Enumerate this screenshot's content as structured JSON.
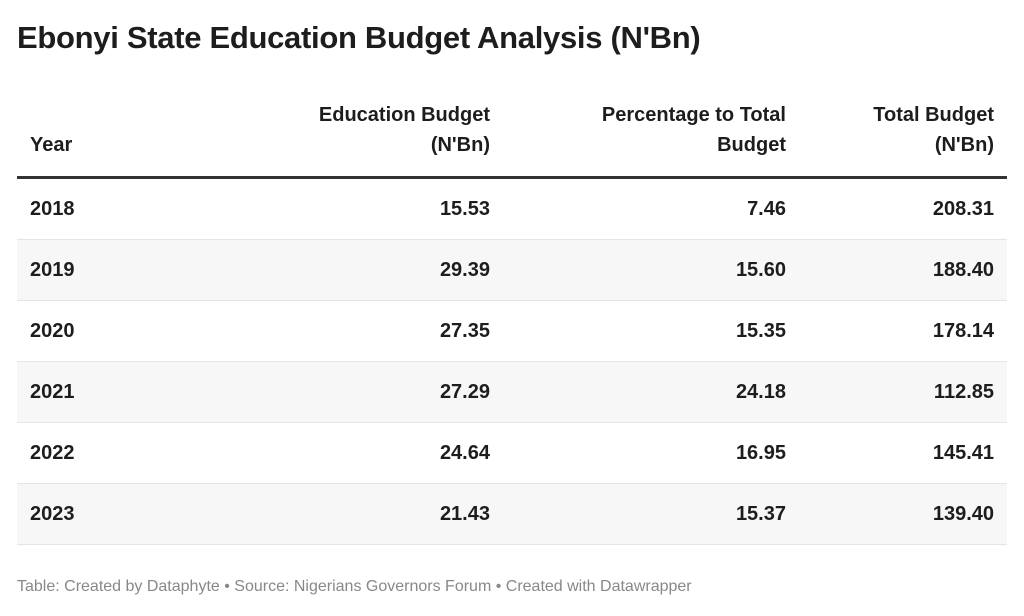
{
  "title": "Ebonyi State Education Budget Analysis (N'Bn)",
  "table": {
    "headers": [
      "Year",
      "Education Budget (N'Bn)",
      "Percentage to Total Budget",
      "Total Budget (N'Bn)"
    ],
    "header_lines": [
      [
        "Year"
      ],
      [
        "Education Budget",
        "(N'Bn)"
      ],
      [
        "Percentage to Total",
        "Budget"
      ],
      [
        "Total Budget",
        "(N'Bn)"
      ]
    ],
    "rows": [
      [
        "2018",
        "15.53",
        "7.46",
        "208.31"
      ],
      [
        "2019",
        "29.39",
        "15.60",
        "188.40"
      ],
      [
        "2020",
        "27.35",
        "15.35",
        "178.14"
      ],
      [
        "2021",
        "27.29",
        "24.18",
        "112.85"
      ],
      [
        "2022",
        "24.64",
        "16.95",
        "145.41"
      ],
      [
        "2023",
        "21.43",
        "15.37",
        "139.40"
      ]
    ]
  },
  "footer": "Table: Created by Dataphyte • Source: Nigerians Governors Forum • Created with Datawrapper"
}
